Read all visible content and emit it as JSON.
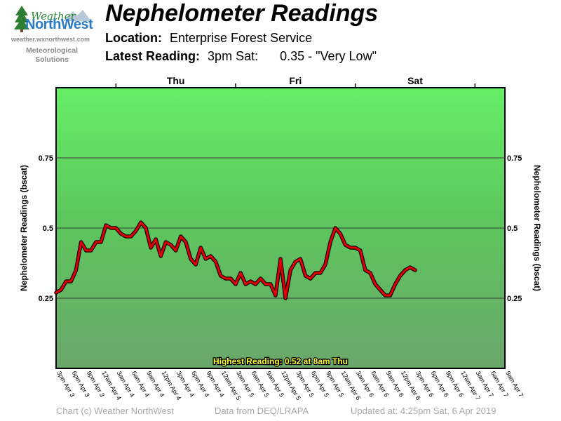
{
  "logo": {
    "brand_top": "Weather",
    "brand_main": "NorthWest",
    "url": "weather.wxnorthwest.com",
    "tagline_1": "Meteorological",
    "tagline_2": "Solutions"
  },
  "title": "Nephelometer Readings",
  "location_label": "Location:",
  "location_value": "Enterprise Forest Service",
  "latest_label": "Latest Reading:",
  "latest_time": "3pm Sat:",
  "latest_value": "0.35 - \"Very Low\"",
  "footer": {
    "credit": "Chart (c) Weather NorthWest",
    "source": "Data from DEQ/LRAPA",
    "updated": "Updated at: 4:25pm Sat, 6 Apr 2019"
  },
  "chart_data": {
    "type": "line",
    "ylabel": "Nephelometer Readings (bscat)",
    "ylim": [
      0,
      1.0
    ],
    "yticks": [
      0.25,
      0.5,
      0.75
    ],
    "ytick_labels": [
      "0.25",
      "0.5",
      "0.75"
    ],
    "grid": true,
    "day_labels": [
      {
        "label": "Thu",
        "hour": 24
      },
      {
        "label": "Fri",
        "hour": 48
      },
      {
        "label": "Sat",
        "hour": 72
      }
    ],
    "xticks": [
      {
        "hour": 0,
        "label": "3pm Apr 3"
      },
      {
        "hour": 3,
        "label": "6pm Apr 3"
      },
      {
        "hour": 6,
        "label": "9pm Apr 3"
      },
      {
        "hour": 9,
        "label": "12am Apr 4"
      },
      {
        "hour": 12,
        "label": "3am Apr 4"
      },
      {
        "hour": 15,
        "label": "6am Apr 4"
      },
      {
        "hour": 18,
        "label": "9am Apr 4"
      },
      {
        "hour": 21,
        "label": "12pm Apr 4"
      },
      {
        "hour": 24,
        "label": "3pm Apr 4"
      },
      {
        "hour": 27,
        "label": "6pm Apr 4"
      },
      {
        "hour": 30,
        "label": "9pm Apr 4"
      },
      {
        "hour": 33,
        "label": "12am Apr 5"
      },
      {
        "hour": 36,
        "label": "3am Apr 5"
      },
      {
        "hour": 39,
        "label": "6am Apr 5"
      },
      {
        "hour": 42,
        "label": "9am Apr 5"
      },
      {
        "hour": 45,
        "label": "12pm Apr 5"
      },
      {
        "hour": 48,
        "label": "3pm Apr 5"
      },
      {
        "hour": 51,
        "label": "6pm Apr 5"
      },
      {
        "hour": 54,
        "label": "9pm Apr 5"
      },
      {
        "hour": 57,
        "label": "12am Apr 6"
      },
      {
        "hour": 60,
        "label": "3am Apr 6"
      },
      {
        "hour": 63,
        "label": "6am Apr 6"
      },
      {
        "hour": 66,
        "label": "9am Apr 6"
      },
      {
        "hour": 69,
        "label": "12pm Apr 6"
      },
      {
        "hour": 72,
        "label": "3pm Apr 6"
      },
      {
        "hour": 75,
        "label": "6pm Apr 6"
      },
      {
        "hour": 78,
        "label": "9pm Apr 6"
      },
      {
        "hour": 81,
        "label": "12am Apr 7"
      },
      {
        "hour": 84,
        "label": "3am Apr 7"
      },
      {
        "hour": 87,
        "label": "6am Apr 7"
      },
      {
        "hour": 90,
        "label": "9am Apr 7"
      }
    ],
    "xlim": [
      0,
      90
    ],
    "series": [
      {
        "color": "#e00000",
        "values": [
          0.27,
          0.28,
          0.31,
          0.31,
          0.35,
          0.45,
          0.42,
          0.42,
          0.45,
          0.45,
          0.51,
          0.5,
          0.5,
          0.48,
          0.47,
          0.47,
          0.49,
          0.52,
          0.5,
          0.43,
          0.46,
          0.4,
          0.45,
          0.44,
          0.42,
          0.47,
          0.45,
          0.39,
          0.37,
          0.43,
          0.39,
          0.4,
          0.38,
          0.33,
          0.32,
          0.32,
          0.3,
          0.34,
          0.3,
          0.31,
          0.3,
          0.32,
          0.3,
          0.3,
          0.26,
          0.39,
          0.25,
          0.35,
          0.38,
          0.39,
          0.33,
          0.32,
          0.34,
          0.34,
          0.37,
          0.45,
          0.5,
          0.48,
          0.44,
          0.43,
          0.43,
          0.42,
          0.35,
          0.34,
          0.3,
          0.28,
          0.26,
          0.26,
          0.3,
          0.33,
          0.35,
          0.36,
          0.35
        ]
      }
    ],
    "annotation": "Highest Reading: 0.52 at 8am Thu"
  }
}
